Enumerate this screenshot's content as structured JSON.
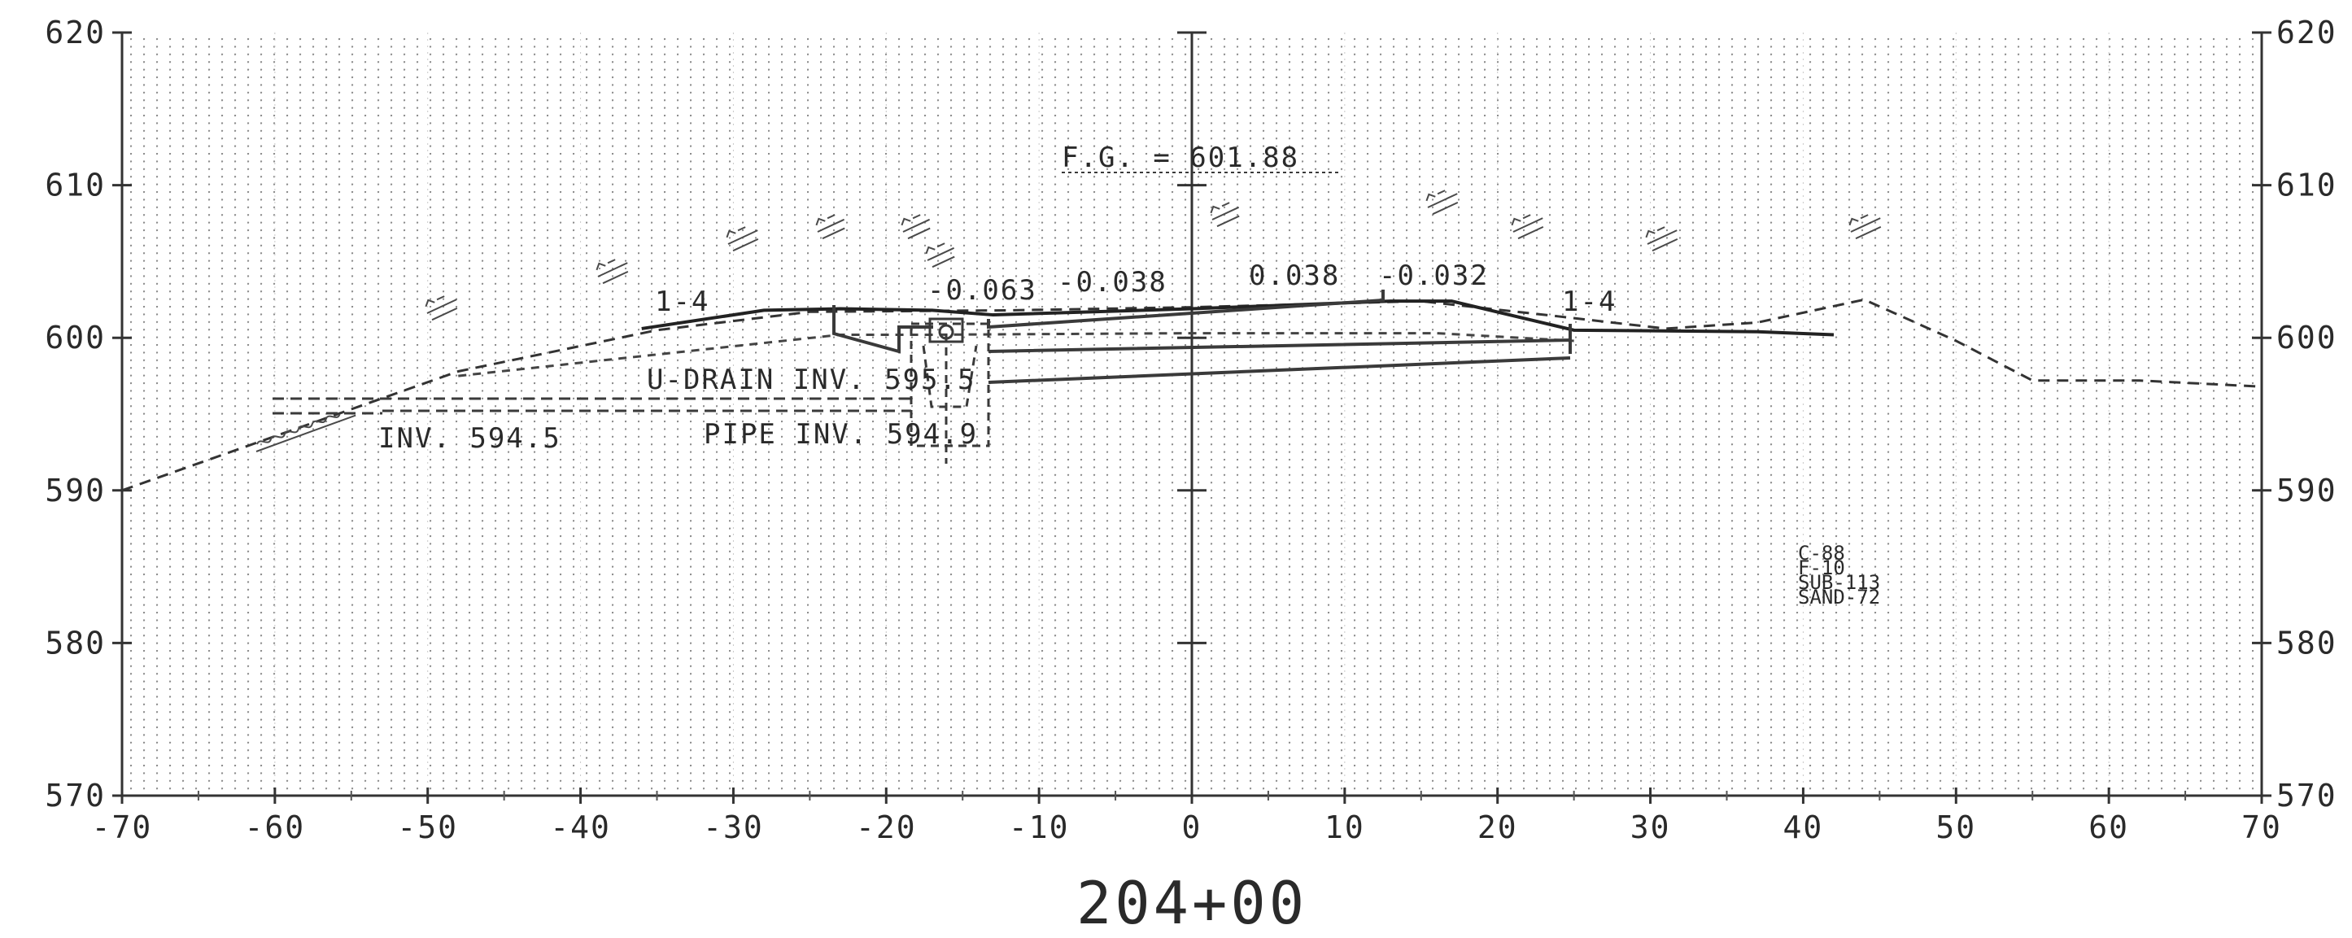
{
  "sheet": {
    "station": "204+00",
    "offset_ticks": [
      "-70",
      "-60",
      "-50",
      "-40",
      "-30",
      "-20",
      "-10",
      "0",
      "10",
      "20",
      "30",
      "40",
      "50",
      "60",
      "70"
    ],
    "elevation_ticks": [
      "620",
      "610",
      "600",
      "590",
      "580",
      "570"
    ],
    "x_range": [
      -70,
      70
    ],
    "y_range": [
      570,
      620
    ],
    "grid": "dotted"
  },
  "annotations": {
    "finished_grade": "F.G. = 601.88",
    "slopes": [
      "-0.063",
      "-0.038",
      "0.038",
      "-0.032"
    ],
    "side_slope_left": "1-4",
    "side_slope_right": "1-4",
    "u_drain": "U-DRAIN INV. 595.5",
    "pipe": "PIPE INV. 594.9",
    "ditch": "INV. 594.5",
    "material_summary": [
      "C-88",
      "F-10",
      "SUB-113",
      "SAND-72"
    ]
  },
  "profiles": {
    "existing_ground": [
      [
        -70,
        590
      ],
      [
        -48,
        597.8
      ],
      [
        -35,
        600.5
      ],
      [
        -25,
        601.7
      ],
      [
        -12,
        601.8
      ],
      [
        0,
        602
      ],
      [
        15,
        602.4
      ],
      [
        24,
        601.4
      ],
      [
        31,
        600.6
      ],
      [
        37,
        601
      ],
      [
        44,
        602.5
      ],
      [
        50,
        599.8
      ],
      [
        55,
        597.2
      ],
      [
        62,
        597.2
      ],
      [
        70,
        596.8
      ]
    ],
    "finished_surface": [
      [
        -36,
        600.6
      ],
      [
        -28,
        601.8
      ],
      [
        -23,
        601.9
      ],
      [
        -17,
        601.8
      ],
      [
        -13,
        601.5
      ],
      [
        0,
        601.9
      ],
      [
        13,
        602.4
      ],
      [
        17,
        602.4
      ],
      [
        25,
        600.5
      ],
      [
        37,
        600.4
      ],
      [
        42,
        600.2
      ]
    ],
    "subgrade": [
      [
        -48,
        597.5
      ],
      [
        -23,
        600.2
      ],
      [
        -17,
        600.2
      ],
      [
        0,
        600.3
      ],
      [
        16,
        600.3
      ],
      [
        25,
        599.8
      ]
    ]
  }
}
